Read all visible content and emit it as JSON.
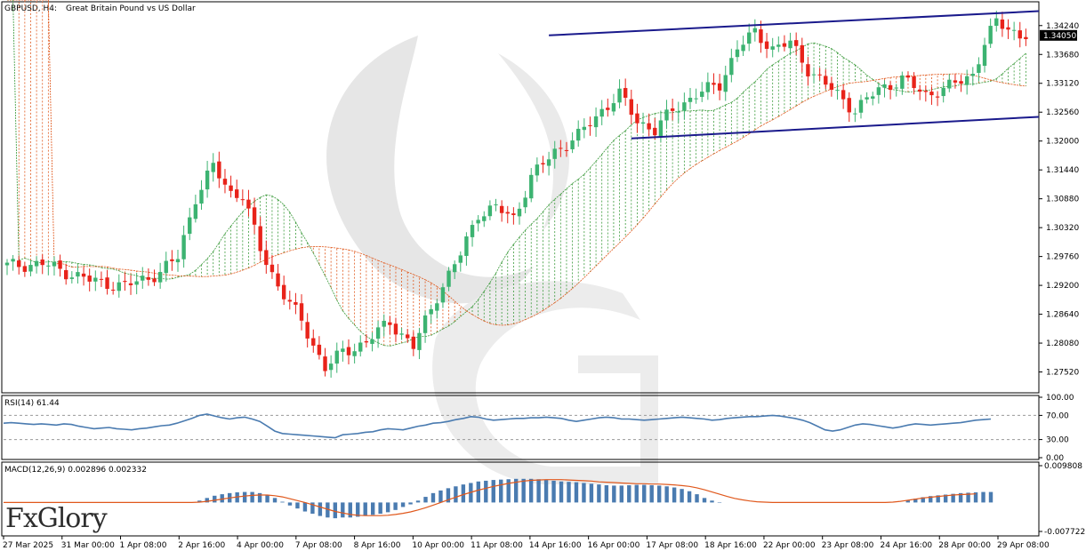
{
  "header": {
    "symbol": "GBPUSD, H4:",
    "description": "Great Britain Pound vs US Dollar"
  },
  "brand": {
    "part1": "Fx",
    "part2": "Glory",
    "color_accent": "#c9302c"
  },
  "colors": {
    "bull": "#3cb371",
    "bear": "#e8231a",
    "trendline": "#1a1a8c",
    "cloud_bull": "#3a9a3a",
    "cloud_bear": "#e0581c",
    "rsi_line": "#4a7bb0",
    "macd_hist": "#4a7bb0",
    "macd_signal": "#e0581c",
    "price_tag_bg": "#000000"
  },
  "chart_data": [
    {
      "type": "candlestick",
      "panel": "price",
      "ylim": [
        1.2715,
        1.3465
      ],
      "yticks": [
        "1.34240",
        "1.33680",
        "1.33120",
        "1.32560",
        "1.32000",
        "1.31440",
        "1.30880",
        "1.30320",
        "1.29760",
        "1.29200",
        "1.28640",
        "1.28080",
        "1.27520"
      ],
      "current_price": "1.34050",
      "x_labels": [
        "27 Mar 2025",
        "31 Mar 00:00",
        "1 Apr 08:00",
        "2 Apr 16:00",
        "4 Apr 00:00",
        "7 Apr 08:00",
        "8 Apr 16:00",
        "10 Apr 00:00",
        "11 Apr 08:00",
        "14 Apr 16:00",
        "16 Apr 00:00",
        "17 Apr 08:00",
        "18 Apr 16:00",
        "22 Apr 00:00",
        "23 Apr 08:00",
        "24 Apr 16:00",
        "28 Apr 00:00",
        "29 Apr 08:00"
      ],
      "close_waypoints": [
        [
          0,
          1.2958
        ],
        [
          6,
          1.2962
        ],
        [
          14,
          1.293
        ],
        [
          20,
          1.2918
        ],
        [
          26,
          1.2945
        ],
        [
          29,
          1.2975
        ],
        [
          32,
          1.309
        ],
        [
          35,
          1.315
        ],
        [
          38,
          1.31
        ],
        [
          40,
          1.3095
        ],
        [
          43,
          1.299
        ],
        [
          46,
          1.292
        ],
        [
          50,
          1.285
        ],
        [
          54,
          1.276
        ],
        [
          57,
          1.279
        ],
        [
          61,
          1.281
        ],
        [
          65,
          1.285
        ],
        [
          69,
          1.28
        ],
        [
          73,
          1.29
        ],
        [
          77,
          1.298
        ],
        [
          80,
          1.306
        ],
        [
          83,
          1.307
        ],
        [
          86,
          1.305
        ],
        [
          89,
          1.313
        ],
        [
          93,
          1.318
        ],
        [
          97,
          1.321
        ],
        [
          101,
          1.326
        ],
        [
          104,
          1.329
        ],
        [
          107,
          1.324
        ],
        [
          110,
          1.322
        ],
        [
          113,
          1.326
        ],
        [
          117,
          1.329
        ],
        [
          121,
          1.331
        ],
        [
          124,
          1.338
        ],
        [
          127,
          1.341
        ],
        [
          130,
          1.338
        ],
        [
          133,
          1.339
        ],
        [
          136,
          1.334
        ],
        [
          140,
          1.33
        ],
        [
          144,
          1.326
        ],
        [
          148,
          1.33
        ],
        [
          152,
          1.332
        ],
        [
          156,
          1.329
        ],
        [
          160,
          1.3305
        ],
        [
          164,
          1.333
        ],
        [
          166,
          1.339
        ],
        [
          168,
          1.343
        ],
        [
          170,
          1.342
        ],
        [
          172,
          1.3405
        ],
        [
          173,
          1.3405
        ]
      ],
      "trendlines": [
        {
          "from": [
            92,
            1.3405
          ],
          "to": [
            177,
            1.3452
          ]
        },
        {
          "from": [
            106,
            1.3205
          ],
          "to": [
            177,
            1.3247
          ]
        }
      ]
    },
    {
      "type": "line",
      "panel": "rsi",
      "title": "RSI(14) 61.44",
      "ylim": [
        0,
        100
      ],
      "yticks": [
        "100.00",
        "70.00",
        "30.00",
        "0.00"
      ],
      "levels": [
        70,
        30
      ],
      "values": [
        57,
        58,
        57,
        56,
        55,
        56,
        55,
        54,
        56,
        55,
        52,
        50,
        48,
        49,
        50,
        48,
        47,
        46,
        48,
        49,
        51,
        53,
        54,
        57,
        61,
        65,
        70,
        72,
        69,
        66,
        64,
        66,
        67,
        64,
        60,
        52,
        44,
        40,
        39,
        38,
        37,
        36,
        35,
        34,
        33,
        38,
        39,
        40,
        42,
        43,
        46,
        48,
        47,
        46,
        49,
        52,
        54,
        57,
        58,
        60,
        63,
        65,
        68,
        67,
        64,
        62,
        63,
        64,
        65,
        65,
        66,
        66,
        67,
        66,
        65,
        62,
        60,
        62,
        64,
        66,
        67,
        66,
        64,
        64,
        63,
        62,
        63,
        64,
        65,
        66,
        67,
        66,
        65,
        64,
        62,
        63,
        65,
        66,
        67,
        68,
        68,
        69,
        70,
        69,
        67,
        65,
        62,
        58,
        52,
        46,
        44,
        46,
        50,
        54,
        56,
        55,
        53,
        51,
        49,
        51,
        54,
        56,
        55,
        54,
        55,
        56,
        57,
        58,
        60,
        62,
        63,
        64
      ]
    },
    {
      "type": "bar",
      "panel": "macd",
      "title": "MACD(12,26,9) 0.002896 0.002332",
      "ylim": [
        -0.007722,
        0.009808
      ],
      "yticks": [
        "0.009808",
        "-0.007722"
      ],
      "series": [
        {
          "name": "MACD",
          "values": [
            0.0,
            0.0,
            0.0,
            0.0,
            0.0,
            0.0,
            0.0,
            0.0,
            0.0,
            0.0,
            0.0,
            0.0,
            0.0,
            0.0,
            0.0,
            0.0,
            0.0,
            0.0,
            0.0,
            0.0,
            0.0,
            0.0,
            0.0,
            0.0,
            0.0,
            0.0,
            0.0005,
            0.0012,
            0.0018,
            0.0022,
            0.0025,
            0.0027,
            0.0028,
            0.0028,
            0.0025,
            0.002,
            0.0012,
            0.0002,
            -0.0008,
            -0.0016,
            -0.0024,
            -0.003,
            -0.0036,
            -0.004,
            -0.0042,
            -0.004,
            -0.004,
            -0.0038,
            -0.0035,
            -0.0033,
            -0.003,
            -0.0026,
            -0.002,
            -0.0012,
            -0.0005,
            0.0005,
            0.0015,
            0.0025,
            0.0032,
            0.0038,
            0.0043,
            0.0048,
            0.0052,
            0.0056,
            0.0058,
            0.006,
            0.0061,
            0.0062,
            0.0063,
            0.0063,
            0.0063,
            0.0062,
            0.006,
            0.0058,
            0.0056,
            0.0055,
            0.0054,
            0.0052,
            0.005,
            0.0048,
            0.0046,
            0.0045,
            0.0045,
            0.0046,
            0.0047,
            0.0047,
            0.0046,
            0.0045,
            0.0043,
            0.004,
            0.0036,
            0.003,
            0.0022,
            0.0012,
            0.0005,
            0.0001,
            0.0,
            0.0,
            0.0,
            0.0,
            0.0,
            0.0,
            0.0,
            0.0,
            0.0,
            0.0,
            0.0,
            0.0,
            0.0,
            0.0,
            0.0,
            0.0,
            0.0,
            0.0,
            0.0,
            0.0,
            0.0,
            0.0,
            0.0,
            0.0,
            0.0005,
            0.001,
            0.0014,
            0.0017,
            0.0019,
            0.0021,
            0.0023,
            0.0025,
            0.0026,
            0.0027,
            0.0028,
            0.0028
          ]
        },
        {
          "name": "Signal",
          "values": [
            0.0,
            0.0,
            0.0,
            0.0,
            0.0,
            0.0,
            0.0,
            0.0,
            0.0,
            0.0,
            0.0,
            0.0,
            0.0,
            0.0,
            0.0,
            0.0,
            0.0,
            0.0,
            0.0,
            0.0,
            0.0,
            0.0,
            0.0,
            0.0,
            0.0,
            0.0,
            0.0001,
            0.0003,
            0.0006,
            0.0009,
            0.0012,
            0.0015,
            0.0017,
            0.0019,
            0.002,
            0.002,
            0.0018,
            0.0015,
            0.001,
            0.0005,
            0.0,
            -0.0006,
            -0.0012,
            -0.0018,
            -0.0024,
            -0.0028,
            -0.0032,
            -0.0034,
            -0.0035,
            -0.0035,
            -0.0035,
            -0.0034,
            -0.0032,
            -0.0029,
            -0.0025,
            -0.002,
            -0.0014,
            -0.0007,
            0.0,
            0.0007,
            0.0014,
            0.0021,
            0.0027,
            0.0033,
            0.0038,
            0.0043,
            0.0047,
            0.0051,
            0.0054,
            0.0057,
            0.0059,
            0.006,
            0.0061,
            0.0061,
            0.0061,
            0.006,
            0.0059,
            0.0058,
            0.0057,
            0.0055,
            0.0054,
            0.0053,
            0.0052,
            0.0051,
            0.005,
            0.005,
            0.0049,
            0.0049,
            0.0048,
            0.0047,
            0.0045,
            0.0043,
            0.0039,
            0.0034,
            0.0028,
            0.0022,
            0.0016,
            0.0011,
            0.0007,
            0.0004,
            0.0002,
            0.0001,
            0.0,
            0.0,
            0.0,
            0.0,
            0.0,
            0.0,
            0.0,
            0.0,
            0.0,
            0.0,
            0.0,
            0.0,
            0.0,
            0.0,
            0.0,
            0.0,
            0.0001,
            0.0003,
            0.0006,
            0.0009,
            0.0012,
            0.0014,
            0.0016,
            0.0018,
            0.002,
            0.0021,
            0.0022,
            0.0023
          ]
        }
      ]
    }
  ]
}
